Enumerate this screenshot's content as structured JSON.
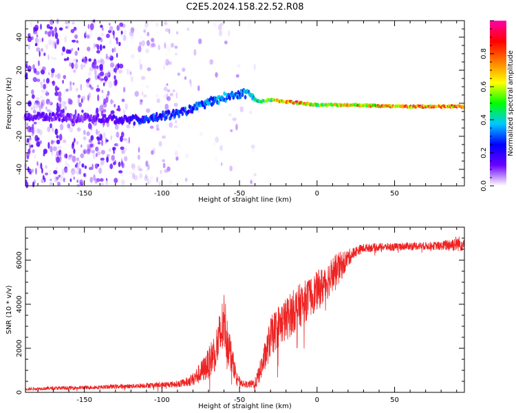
{
  "title": "C2E5.2024.158.22.52.R08",
  "chart_data": [
    {
      "type": "heatmap",
      "xlabel": "Height of straight line (km)",
      "ylabel": "Frequency (Hz)",
      "xlim": [
        -188,
        95
      ],
      "ylim": [
        -50,
        50
      ],
      "xticks": [
        -150,
        -100,
        -50,
        0,
        50
      ],
      "xtick_labels": [
        "-150",
        "-100",
        "-50",
        "0",
        "50"
      ],
      "yticks": [
        -40,
        -20,
        0,
        20,
        40
      ],
      "ytick_labels": [
        "-40",
        "-20",
        "0",
        "20",
        "40"
      ],
      "colorbar": {
        "label": "Normalized spectral amplitude",
        "range": [
          0,
          1
        ],
        "ticks": [
          0.0,
          0.2,
          0.4,
          0.6,
          0.8
        ],
        "tick_labels": [
          "0.0",
          "0.2",
          "0.4",
          "0.6",
          "0.8"
        ],
        "colormap": [
          "#ffffff",
          "#6a00ff",
          "#0000ff",
          "#00c8ff",
          "#00ff00",
          "#ffff00",
          "#ff7f00",
          "#ff0000",
          "#ff00aa"
        ]
      },
      "ridge": {
        "x": [
          -170,
          -150,
          -125,
          -110,
          -95,
          -85,
          -75,
          -65,
          -55,
          -45,
          -38,
          -30,
          -20,
          -10,
          0,
          25,
          50,
          95
        ],
        "freq_hz": [
          -8,
          -9,
          -10,
          -10,
          -7,
          -5,
          -1,
          2,
          5,
          6,
          1,
          2,
          1,
          0,
          -1,
          -1,
          -2,
          -2
        ],
        "amplitude": [
          0.15,
          0.12,
          0.2,
          0.3,
          0.3,
          0.3,
          0.35,
          0.4,
          0.35,
          0.4,
          0.5,
          0.65,
          0.8,
          0.9,
          0.6,
          0.75,
          0.85,
          0.85
        ]
      },
      "grid": false
    },
    {
      "type": "line",
      "xlabel": "Height of straight line (km)",
      "ylabel": "SNR (10 * v/v)",
      "xlim": [
        -188,
        95
      ],
      "ylim": [
        0,
        7500
      ],
      "xticks": [
        -150,
        -100,
        -50,
        0,
        50
      ],
      "xtick_labels": [
        "-150",
        "-100",
        "-50",
        "0",
        "50"
      ],
      "yticks": [
        0,
        2000,
        4000,
        6000
      ],
      "ytick_labels": [
        "0",
        "2000",
        "4000",
        "6000"
      ],
      "series": [
        {
          "color": "#ee2222",
          "x": [
            -188,
            -175,
            -160,
            -150,
            -140,
            -130,
            -120,
            -110,
            -100,
            -90,
            -85,
            -80,
            -75,
            -70,
            -65,
            -62,
            -60,
            -58,
            -55,
            -52,
            -50,
            -48,
            -45,
            -42,
            -40,
            -38,
            -35,
            -32,
            -30,
            -25,
            -20,
            -15,
            -10,
            -5,
            0,
            5,
            10,
            15,
            20,
            25,
            30,
            40,
            50,
            60,
            70,
            80,
            85,
            90,
            95
          ],
          "y": [
            150,
            180,
            200,
            220,
            240,
            260,
            280,
            320,
            340,
            380,
            450,
            600,
            900,
            1300,
            2000,
            2600,
            3300,
            2500,
            1500,
            800,
            500,
            400,
            350,
            380,
            400,
            700,
            1300,
            2000,
            2500,
            3000,
            3300,
            3700,
            4000,
            4300,
            4600,
            4900,
            5400,
            5700,
            6100,
            6400,
            6550,
            6600,
            6600,
            6650,
            6650,
            6650,
            6700,
            6750,
            6750
          ],
          "noise": [
            60,
            80,
            90,
            90,
            90,
            100,
            100,
            120,
            130,
            150,
            200,
            300,
            500,
            700,
            1000,
            1300,
            1400,
            1200,
            700,
            300,
            200,
            150,
            150,
            200,
            250,
            400,
            600,
            800,
            900,
            1000,
            1000,
            1000,
            1000,
            900,
            900,
            900,
            800,
            700,
            400,
            250,
            200,
            180,
            180,
            180,
            180,
            200,
            300,
            350,
            350
          ]
        }
      ],
      "grid": false
    }
  ]
}
